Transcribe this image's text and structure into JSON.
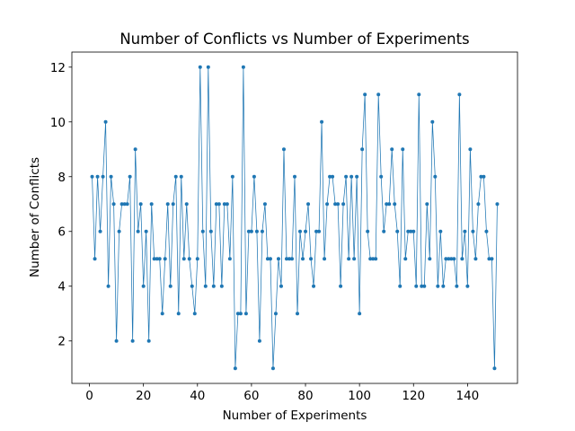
{
  "chart_data": {
    "type": "line",
    "title": "Number of Conflicts vs Number of Experiments",
    "x_label": "Number of Experiments",
    "y_label": "Number of Conflicts",
    "color": "#1f77b4",
    "x": [
      1,
      2,
      3,
      4,
      5,
      6,
      7,
      8,
      9,
      10,
      11,
      12,
      13,
      14,
      15,
      16,
      17,
      18,
      19,
      20,
      21,
      22,
      23,
      24,
      25,
      26,
      27,
      28,
      29,
      30,
      31,
      32,
      33,
      34,
      35,
      36,
      37,
      38,
      39,
      40,
      41,
      42,
      43,
      44,
      45,
      46,
      47,
      48,
      49,
      50,
      51,
      52,
      53,
      54,
      55,
      56,
      57,
      58,
      59,
      60,
      61,
      62,
      63,
      64,
      65,
      66,
      67,
      68,
      69,
      70,
      71,
      72,
      73,
      74,
      75,
      76,
      77,
      78,
      79,
      80,
      81,
      82,
      83,
      84,
      85,
      86,
      87,
      88,
      89,
      90,
      91,
      92,
      93,
      94,
      95,
      96,
      97,
      98,
      99,
      100,
      101,
      102,
      103,
      104,
      105,
      106,
      107,
      108,
      109,
      110,
      111,
      112,
      113,
      114,
      115,
      116,
      117,
      118,
      119,
      120,
      121,
      122,
      123,
      124,
      125,
      126,
      127,
      128,
      129,
      130,
      131,
      132,
      133,
      134,
      135,
      136,
      137,
      138,
      139,
      140,
      141,
      142,
      143,
      144,
      145,
      146,
      147,
      148,
      149,
      150,
      151
    ],
    "values": [
      8,
      5,
      8,
      6,
      8,
      10,
      4,
      8,
      7,
      2,
      6,
      7,
      7,
      7,
      8,
      2,
      9,
      6,
      7,
      4,
      6,
      2,
      7,
      5,
      5,
      5,
      3,
      5,
      7,
      4,
      7,
      8,
      3,
      8,
      5,
      7,
      5,
      4,
      3,
      5,
      12,
      6,
      4,
      12,
      6,
      4,
      7,
      7,
      4,
      7,
      7,
      5,
      8,
      1,
      3,
      3,
      12,
      3,
      6,
      6,
      8,
      6,
      2,
      6,
      7,
      5,
      5,
      1,
      3,
      5,
      4,
      9,
      5,
      5,
      5,
      8,
      3,
      6,
      5,
      6,
      7,
      5,
      4,
      6,
      6,
      10,
      5,
      7,
      8,
      8,
      7,
      7,
      4,
      7,
      8,
      5,
      8,
      5,
      8,
      3,
      9,
      11,
      6,
      5,
      5,
      5,
      11,
      8,
      6,
      7,
      7,
      9,
      7,
      6,
      4,
      9,
      5,
      6,
      6,
      6,
      4,
      11,
      4,
      4,
      7,
      5,
      10,
      8,
      4,
      6,
      4,
      5,
      5,
      5,
      5,
      4,
      11,
      5,
      6,
      4,
      9,
      6,
      5,
      7,
      8,
      8,
      6,
      5,
      5,
      1,
      7
    ],
    "xlim": [
      -6.5,
      158.5
    ],
    "ylim": [
      0.45,
      12.55
    ],
    "xticks": [
      0,
      20,
      40,
      60,
      80,
      100,
      120,
      140
    ],
    "yticks": [
      2,
      4,
      6,
      8,
      10,
      12
    ]
  }
}
